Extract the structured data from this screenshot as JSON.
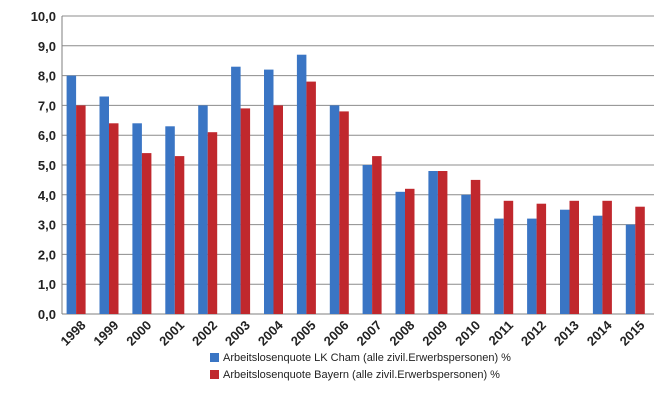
{
  "chart_data": {
    "type": "bar",
    "categories": [
      "1998",
      "1999",
      "2000",
      "2001",
      "2002",
      "2003",
      "2004",
      "2005",
      "2006",
      "2007",
      "2008",
      "2009",
      "2010",
      "2011",
      "2012",
      "2013",
      "2014",
      "2015"
    ],
    "series": [
      {
        "name": "Arbeitslosenquote LK Cham (alle zivil.Erwerbspersonen) %",
        "color": "#3a75c4",
        "values": [
          8.0,
          7.3,
          6.4,
          6.3,
          7.0,
          8.3,
          8.2,
          8.7,
          7.0,
          5.0,
          4.1,
          4.8,
          4.0,
          3.2,
          3.2,
          3.5,
          3.3,
          3.0
        ]
      },
      {
        "name": "Arbeitslosenquote Bayern (alle zivil.Erwerbspersonen) %",
        "color": "#c0282d",
        "values": [
          7.0,
          6.4,
          5.4,
          5.3,
          6.1,
          6.9,
          7.0,
          7.8,
          6.8,
          5.3,
          4.2,
          4.8,
          4.5,
          3.8,
          3.7,
          3.8,
          3.8,
          3.6
        ]
      }
    ],
    "ylim": [
      0,
      10
    ],
    "ytick_labels": [
      "0,0",
      "1,0",
      "2,0",
      "3,0",
      "4,0",
      "5,0",
      "6,0",
      "7,0",
      "8,0",
      "9,0",
      "10,0"
    ],
    "grid": true,
    "legend_position": "bottom-center"
  }
}
